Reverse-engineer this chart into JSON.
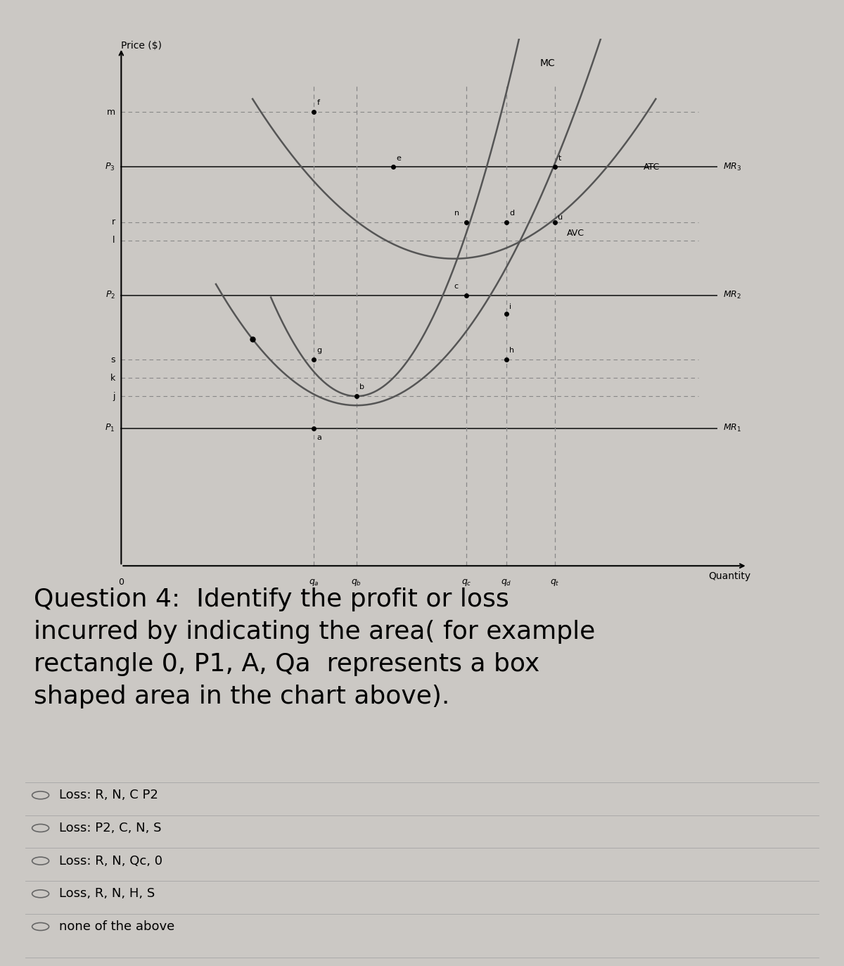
{
  "bg_color": "#cbc8c4",
  "fig_width": 12.0,
  "fig_height": 13.73,
  "price_label": "Price ($)",
  "quantity_label": "Quantity",
  "curve_color": "#555555",
  "dashed_color": "#888888",
  "solid_color": "#333333",
  "question_text_line1": "Question 4:  Identify the profit or loss",
  "question_text_line2": "incurred by indicating the area( for example",
  "question_text_line3": "rectangle 0, P1, A, Qa  represents a box",
  "question_text_line4": "shaped area in the chart above).",
  "options": [
    "Loss: R, N, C P2",
    "Loss: P2, C, N, S",
    "Loss: R, N, Qc, 0",
    "Loss, R, N, H, S",
    "none of the above"
  ]
}
